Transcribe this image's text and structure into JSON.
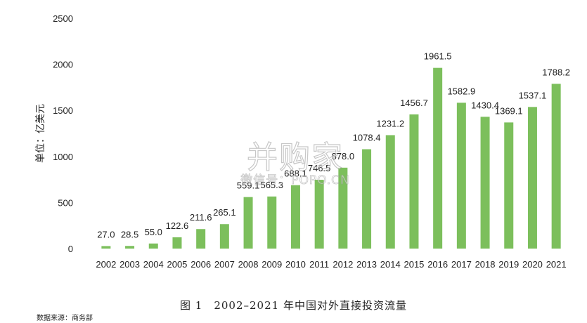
{
  "chart_data": {
    "type": "bar",
    "title": "",
    "xlabel": "",
    "ylabel": "单位：亿美元",
    "ylim": [
      0,
      2500
    ],
    "yticks": [
      0,
      500,
      1000,
      1500,
      2000,
      2500
    ],
    "grid": false,
    "legend": "none",
    "bar_color": "#7cbf5c",
    "categories": [
      "2002",
      "2003",
      "2004",
      "2005",
      "2006",
      "2007",
      "2008",
      "2009",
      "2010",
      "2011",
      "2012",
      "2013",
      "2014",
      "2015",
      "2016",
      "2017",
      "2018",
      "2019",
      "2020",
      "2021"
    ],
    "values": [
      27.0,
      28.5,
      55.0,
      122.6,
      211.6,
      265.1,
      559.1,
      565.3,
      688.1,
      746.5,
      878.0,
      1078.4,
      1231.2,
      1456.7,
      1961.5,
      1582.9,
      1430.4,
      1369.1,
      1537.1,
      1788.2
    ],
    "data_labels": [
      "27.0",
      "28.5",
      "55.0",
      "122.6",
      "211.6",
      "265.1",
      "559.1",
      "565.3",
      "688.1",
      "746.5",
      "878.0",
      "1078.4",
      "1231.2",
      "1456.7",
      "1961.5",
      "1582.9",
      "1430.4",
      "1369.1",
      "1537.1",
      "1788.2"
    ]
  },
  "caption": "图 1　2002–2021 年中国对外直接投资流量",
  "source": "数据来源：商务部",
  "watermark": {
    "main": "并购家",
    "sub": "微信号：POPO.CN"
  }
}
